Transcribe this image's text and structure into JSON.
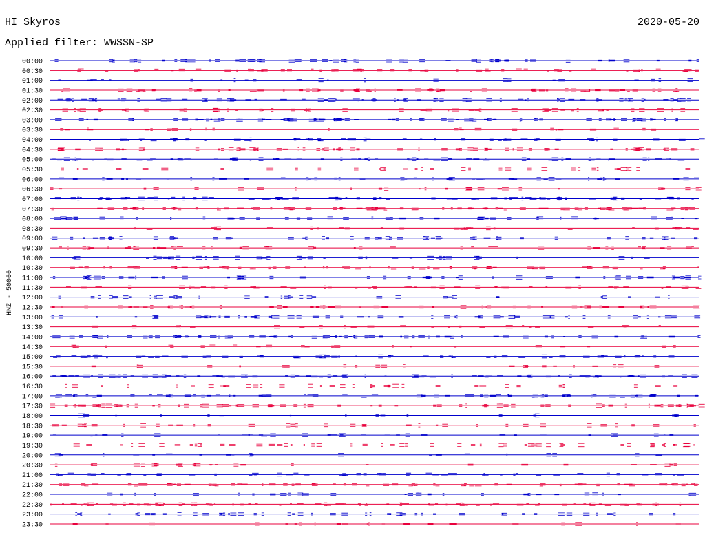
{
  "header": {
    "station": "HI Skyros",
    "date": "2020-05-20",
    "filter": "Applied filter: WWSSN-SP"
  },
  "axis_label": "HNZ - 50000",
  "trace_colors": [
    "#0000cc",
    "#e8003c"
  ],
  "rows": [
    "00:00",
    "00:30",
    "01:00",
    "01:30",
    "02:00",
    "02:30",
    "03:00",
    "03:30",
    "04:00",
    "04:30",
    "05:00",
    "05:30",
    "06:00",
    "06:30",
    "07:00",
    "07:30",
    "08:00",
    "08:30",
    "09:00",
    "09:30",
    "10:00",
    "10:30",
    "11:00",
    "11:30",
    "12:00",
    "12:30",
    "13:00",
    "13:30",
    "14:00",
    "14:30",
    "15:00",
    "15:30",
    "16:00",
    "16:30",
    "17:00",
    "17:30",
    "18:00",
    "18:30",
    "19:00",
    "19:30",
    "20:00",
    "20:30",
    "21:00",
    "21:30",
    "22:00",
    "22:30",
    "23:00",
    "23:30"
  ]
}
